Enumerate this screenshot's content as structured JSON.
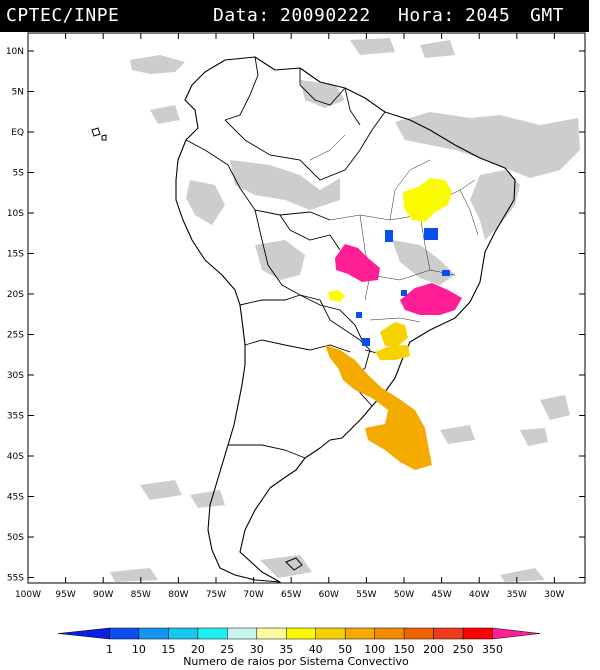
{
  "header": {
    "source": "CPTEC/INPE",
    "date_label": "Data:",
    "date_value": "20090222",
    "hour_label": "Hora:",
    "hour_value": "2045",
    "tz": "GMT"
  },
  "axes": {
    "lat_ticks": [
      "10N",
      "5N",
      "EQ",
      "5S",
      "10S",
      "15S",
      "20S",
      "25S",
      "30S",
      "35S",
      "40S",
      "45S",
      "50S",
      "55S"
    ],
    "lon_ticks": [
      "100W",
      "95W",
      "90W",
      "85W",
      "80W",
      "75W",
      "70W",
      "65W",
      "60W",
      "55W",
      "50W",
      "45W",
      "40W",
      "35W",
      "30W"
    ]
  },
  "colorbar": {
    "values": [
      "1",
      "10",
      "15",
      "20",
      "25",
      "30",
      "35",
      "40",
      "50",
      "100",
      "150",
      "200",
      "250",
      "350"
    ],
    "colors": [
      "#0a1ee6",
      "#0a50f0",
      "#1496f0",
      "#14c8f0",
      "#1ef0f0",
      "#c8f5f0",
      "#fafaa0",
      "#fafa00",
      "#f5d200",
      "#f5aa00",
      "#f58c00",
      "#f06400",
      "#f03c1e",
      "#ff0000",
      "#ff1e96"
    ],
    "label": "Numero de raios por Sistema Convectivo"
  }
}
